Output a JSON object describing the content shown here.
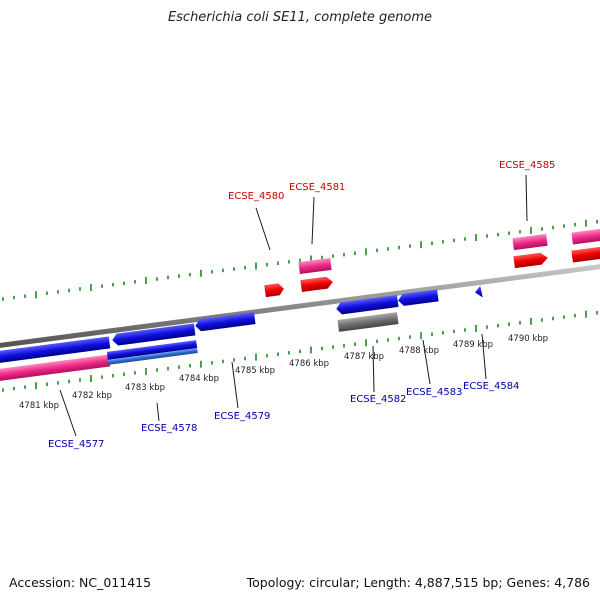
{
  "title": "Escherichia coli SE11, complete genome",
  "footer": {
    "accession": "Accession: NC_011415",
    "summary": "Topology: circular; Length: 4,887,515 bp; Genes: 4,786"
  },
  "colors": {
    "backbone": "#8a8a8a",
    "ticks": "#1a8a1a",
    "cds": "#ee0000",
    "cds_reverse": "#1010dd",
    "gene_forward": "#ee2a88",
    "gene_reverse": "#2a6ad0",
    "other": "#6f6f6f"
  },
  "scale": {
    "ticks": [
      "4781 kbp",
      "4782 kbp",
      "4783 kbp",
      "4784 kbp",
      "4785 kbp",
      "4786 kbp",
      "4787 kbp",
      "4788 kbp",
      "4789 kbp",
      "4790 kbp"
    ]
  },
  "labels": {
    "top": [
      "ECSE_4580",
      "ECSE_4581",
      "ECSE_4585"
    ],
    "bottom": [
      "ECSE_4577",
      "ECSE_4578",
      "ECSE_4579",
      "ECSE_4582",
      "ECSE_4583",
      "ECSE_4584"
    ]
  }
}
